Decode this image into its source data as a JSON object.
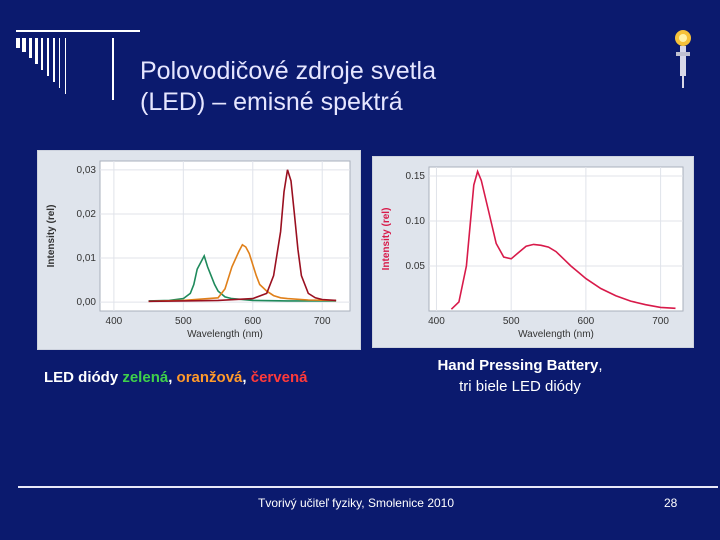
{
  "slide": {
    "title_line1": "Polovodičové zdroje svetla",
    "title_line2": "(LED) – emisné spektrá",
    "footer": "Tvorivý učiteľ fyziky, Smolenice 2010",
    "page_number": "28",
    "logo_icon": "lamp-figure-icon"
  },
  "captions": {
    "left_prefix": "LED diódy ",
    "left_green": "zelená",
    "left_sep1": ", ",
    "left_orange": "oranžová",
    "left_sep2": ", ",
    "left_red": "červená",
    "right_bold": "Hand Pressing Battery",
    "right_rest": ",",
    "right_line2": "tri biele LED diódy"
  },
  "colors": {
    "background": "#0b1a6e",
    "green": "#3fd14a",
    "orange": "#ff9a2b",
    "red": "#ff3a3a"
  },
  "chart_data": [
    {
      "type": "line",
      "xlabel": "Wavelength (nm)",
      "ylabel": "Intensity (rel)",
      "xlim": [
        380,
        740
      ],
      "ylim": [
        -0.002,
        0.032
      ],
      "xticks": [
        400,
        500,
        600,
        700
      ],
      "yticks": [
        0.0,
        0.01,
        0.02,
        0.03
      ],
      "ytick_labels": [
        "0,00",
        "0,01",
        "0,02",
        "0,03"
      ],
      "grid": true,
      "series": [
        {
          "color": "#1f8a5c",
          "x": [
            450,
            480,
            500,
            510,
            515,
            520,
            525,
            530,
            535,
            540,
            545,
            550,
            560,
            570,
            600,
            650,
            700,
            720
          ],
          "y": [
            0.0003,
            0.0004,
            0.0008,
            0.002,
            0.004,
            0.0075,
            0.009,
            0.0105,
            0.008,
            0.006,
            0.004,
            0.0025,
            0.0012,
            0.0008,
            0.0004,
            0.0003,
            0.0003,
            0.0003
          ]
        },
        {
          "color": "#e0801a",
          "x": [
            450,
            500,
            550,
            560,
            570,
            580,
            585,
            590,
            595,
            600,
            605,
            610,
            620,
            630,
            640,
            650,
            680,
            720
          ],
          "y": [
            0.0002,
            0.0004,
            0.001,
            0.003,
            0.008,
            0.0115,
            0.013,
            0.0125,
            0.011,
            0.0085,
            0.006,
            0.004,
            0.0025,
            0.0015,
            0.001,
            0.0008,
            0.0005,
            0.0004
          ]
        },
        {
          "color": "#9a1020",
          "x": [
            450,
            500,
            550,
            600,
            620,
            630,
            640,
            645,
            650,
            655,
            660,
            665,
            670,
            680,
            690,
            700,
            720
          ],
          "y": [
            0.0002,
            0.0003,
            0.0004,
            0.0008,
            0.002,
            0.006,
            0.016,
            0.025,
            0.03,
            0.0275,
            0.02,
            0.012,
            0.006,
            0.002,
            0.001,
            0.0006,
            0.0004
          ]
        }
      ]
    },
    {
      "type": "line",
      "xlabel": "Wavelength (nm)",
      "ylabel": "Intensity (rel)",
      "xlim": [
        390,
        730
      ],
      "ylim": [
        0,
        0.16
      ],
      "xticks": [
        400,
        500,
        600,
        700
      ],
      "yticks": [
        0.05,
        0.1,
        0.15
      ],
      "ytick_labels": [
        "0.05",
        "0.10",
        "0.15"
      ],
      "grid": true,
      "series": [
        {
          "color": "#d81a4a",
          "x": [
            420,
            430,
            440,
            445,
            450,
            455,
            460,
            470,
            480,
            490,
            500,
            510,
            520,
            530,
            540,
            550,
            560,
            570,
            580,
            590,
            600,
            620,
            640,
            660,
            680,
            700,
            720
          ],
          "y": [
            0.002,
            0.01,
            0.05,
            0.095,
            0.14,
            0.155,
            0.145,
            0.11,
            0.075,
            0.06,
            0.058,
            0.065,
            0.072,
            0.074,
            0.073,
            0.071,
            0.066,
            0.058,
            0.05,
            0.043,
            0.036,
            0.025,
            0.017,
            0.011,
            0.007,
            0.004,
            0.003
          ]
        }
      ]
    }
  ]
}
